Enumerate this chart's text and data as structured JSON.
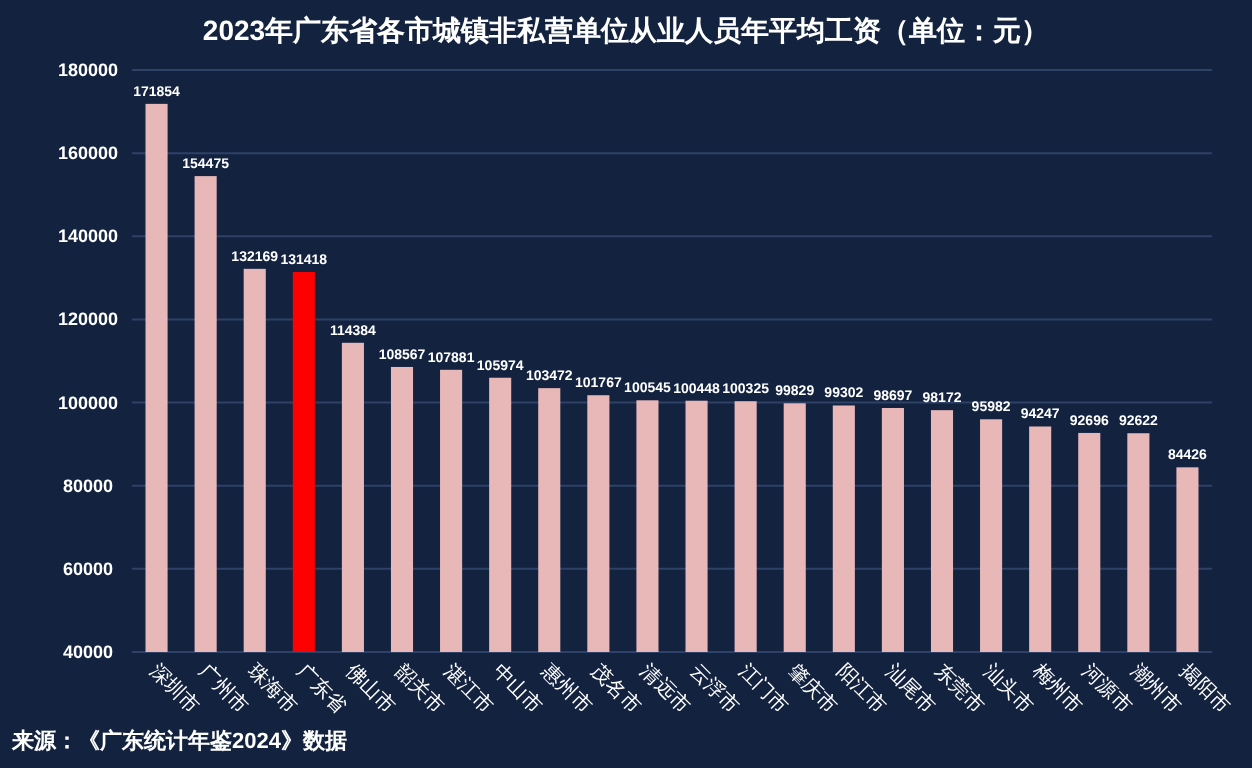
{
  "chart_data": {
    "type": "bar",
    "title": "2023年广东省各市城镇非私营单位从业人员年平均工资（单位：元）",
    "categories": [
      "深圳市",
      "广州市",
      "珠海市",
      "广东省",
      "佛山市",
      "韶关市",
      "湛江市",
      "中山市",
      "惠州市",
      "茂名市",
      "清远市",
      "云浮市",
      "江门市",
      "肇庆市",
      "阳江市",
      "汕尾市",
      "东莞市",
      "汕头市",
      "梅州市",
      "河源市",
      "潮州市",
      "揭阳市"
    ],
    "values": [
      171854,
      154475,
      132169,
      131418,
      114384,
      108567,
      107881,
      105974,
      103472,
      101767,
      100545,
      100448,
      100325,
      99829,
      99302,
      98697,
      98172,
      95982,
      94247,
      92696,
      92622,
      84426
    ],
    "colors": [
      "#e8b8b8",
      "#e8b8b8",
      "#e8b8b8",
      "#ff0000",
      "#e8b8b8",
      "#e8b8b8",
      "#e8b8b8",
      "#e8b8b8",
      "#e8b8b8",
      "#e8b8b8",
      "#e8b8b8",
      "#e8b8b8",
      "#e8b8b8",
      "#e8b8b8",
      "#e8b8b8",
      "#e8b8b8",
      "#e8b8b8",
      "#e8b8b8",
      "#e8b8b8",
      "#e8b8b8",
      "#e8b8b8",
      "#e8b8b8"
    ],
    "ylim": [
      40000,
      180000
    ],
    "yticks": [
      40000,
      60000,
      80000,
      100000,
      120000,
      140000,
      160000,
      180000
    ],
    "grid": "y",
    "data_labels": true,
    "annotations": [
      "来源：《广东统计年鉴2024》数据"
    ]
  }
}
